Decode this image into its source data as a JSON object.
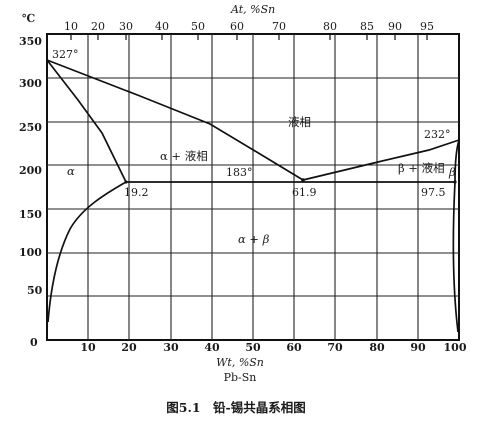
{
  "figure": {
    "caption": "图5.1　铅-锡共晶系相图",
    "system_label": "Pb-Sn"
  },
  "axes": {
    "y_unit": "℃",
    "y_ticks": [
      "350",
      "300",
      "250",
      "200",
      "150",
      "100",
      "50",
      "0"
    ],
    "bottom_label": "Wt, %Sn",
    "bottom_ticks": [
      "10",
      "20",
      "30",
      "40",
      "50",
      "60",
      "70",
      "80",
      "90",
      "100"
    ],
    "top_label": "At, %Sn",
    "top_ticks": [
      "10",
      "20",
      "30",
      "40",
      "50",
      "60",
      "70",
      "80",
      "85",
      "90",
      "95"
    ]
  },
  "annotations": {
    "pb_melting": "327°",
    "sn_melting": "232°",
    "eutectic_temp": "183°",
    "alpha_limit": "19.2",
    "eutectic_comp": "61.9",
    "beta_limit": "97.5"
  },
  "regions": {
    "liquid": "液相",
    "alpha_plus_liquid": "α + 液相",
    "beta_plus_liquid": "β + 液相",
    "alpha": "α",
    "beta": "β",
    "alpha_plus_beta": "α + β"
  },
  "phase_data": {
    "x_unit": "Wt %Sn",
    "y_unit": "°C",
    "pb_melting_point": [
      0,
      327
    ],
    "sn_melting_point": [
      100,
      232
    ],
    "eutectic_point": [
      61.9,
      183
    ],
    "alpha_max_solubility": [
      19.2,
      183
    ],
    "beta_max_solubility": [
      97.5,
      183
    ]
  }
}
